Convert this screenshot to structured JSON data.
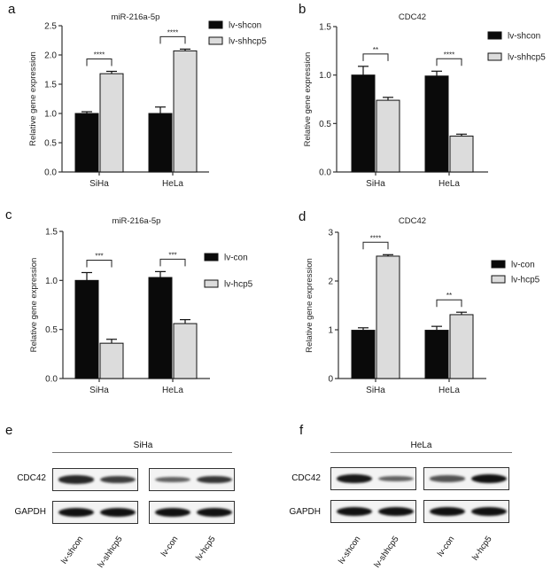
{
  "figure": {
    "panels": [
      "a",
      "b",
      "c",
      "d",
      "e",
      "f"
    ]
  },
  "colors": {
    "control_bar": "#0a0a0a",
    "treatment_bar": "#dcdcdc",
    "axis": "#333333"
  },
  "chart_data": [
    {
      "panel": "a",
      "type": "bar",
      "title": "miR-216a-5p",
      "xlabel": "",
      "ylabel": "Relative gene expression",
      "categories": [
        "SiHa",
        "HeLa"
      ],
      "ylim": [
        0,
        2.5
      ],
      "yticks": [
        "0.0",
        "0.5",
        "1.0",
        "1.5",
        "2.0",
        "2.5"
      ],
      "series": [
        {
          "name": "lv-shcon",
          "values": [
            1.0,
            1.0
          ],
          "errors": [
            0.03,
            0.11
          ],
          "color": "#0a0a0a"
        },
        {
          "name": "lv-shhcp5",
          "values": [
            1.68,
            2.07
          ],
          "errors": [
            0.04,
            0.03
          ],
          "color": "#dcdcdc"
        }
      ],
      "significance": [
        "****",
        "****"
      ],
      "legend_position": "upper right",
      "grid": false
    },
    {
      "panel": "b",
      "type": "bar",
      "title": "CDC42",
      "xlabel": "",
      "ylabel": "Relative gene expression",
      "categories": [
        "SiHa",
        "HeLa"
      ],
      "ylim": [
        0,
        1.5
      ],
      "yticks": [
        "0.0",
        "0.5",
        "1.0",
        "1.5"
      ],
      "series": [
        {
          "name": "lv-shcon",
          "values": [
            1.0,
            0.99
          ],
          "errors": [
            0.09,
            0.05
          ],
          "color": "#0a0a0a"
        },
        {
          "name": "lv-shhcp5",
          "values": [
            0.74,
            0.37
          ],
          "errors": [
            0.03,
            0.02
          ],
          "color": "#dcdcdc"
        }
      ],
      "significance": [
        "**",
        "****"
      ],
      "legend_position": "upper right",
      "grid": false
    },
    {
      "panel": "c",
      "type": "bar",
      "title": "miR-216a-5p",
      "xlabel": "",
      "ylabel": "Relative gene expression",
      "categories": [
        "SiHa",
        "HeLa"
      ],
      "ylim": [
        0,
        1.5
      ],
      "yticks": [
        "0.0",
        "0.5",
        "1.0",
        "1.5"
      ],
      "series": [
        {
          "name": "lv-con",
          "values": [
            1.0,
            1.03
          ],
          "errors": [
            0.08,
            0.06
          ],
          "color": "#0a0a0a"
        },
        {
          "name": "lv-hcp5",
          "values": [
            0.36,
            0.56
          ],
          "errors": [
            0.04,
            0.04
          ],
          "color": "#dcdcdc"
        }
      ],
      "significance": [
        "***",
        "***"
      ],
      "legend_position": "upper right",
      "grid": false
    },
    {
      "panel": "d",
      "type": "bar",
      "title": "CDC42",
      "xlabel": "",
      "ylabel": "Relative gene expression",
      "categories": [
        "SiHa",
        "HeLa"
      ],
      "ylim": [
        0,
        3
      ],
      "yticks": [
        "0",
        "1",
        "2",
        "3"
      ],
      "series": [
        {
          "name": "lv-con",
          "values": [
            0.99,
            0.99
          ],
          "errors": [
            0.05,
            0.08
          ],
          "color": "#0a0a0a"
        },
        {
          "name": "lv-hcp5",
          "values": [
            2.51,
            1.31
          ],
          "errors": [
            0.03,
            0.05
          ],
          "color": "#dcdcdc"
        }
      ],
      "significance": [
        "****",
        "**"
      ],
      "legend_position": "right",
      "grid": false
    }
  ],
  "blots": [
    {
      "panel": "e",
      "cell_line": "SiHa",
      "rows": [
        "CDC42",
        "GAPDH"
      ],
      "lanes": [
        "lv-shcon",
        "lv-shhcp5",
        "lv-con",
        "lv-hcp5"
      ],
      "band_intensity": {
        "CDC42": [
          0.85,
          0.7,
          0.45,
          0.75
        ],
        "GAPDH": [
          1.0,
          1.0,
          1.0,
          1.0
        ]
      }
    },
    {
      "panel": "f",
      "cell_line": "HeLa",
      "rows": [
        "CDC42",
        "GAPDH"
      ],
      "lanes": [
        "lv-shcon",
        "lv-shhcp5",
        "lv-con",
        "lv-hcp5"
      ],
      "band_intensity": {
        "CDC42": [
          0.95,
          0.45,
          0.55,
          1.0
        ],
        "GAPDH": [
          1.0,
          1.0,
          1.0,
          1.0
        ]
      }
    }
  ]
}
